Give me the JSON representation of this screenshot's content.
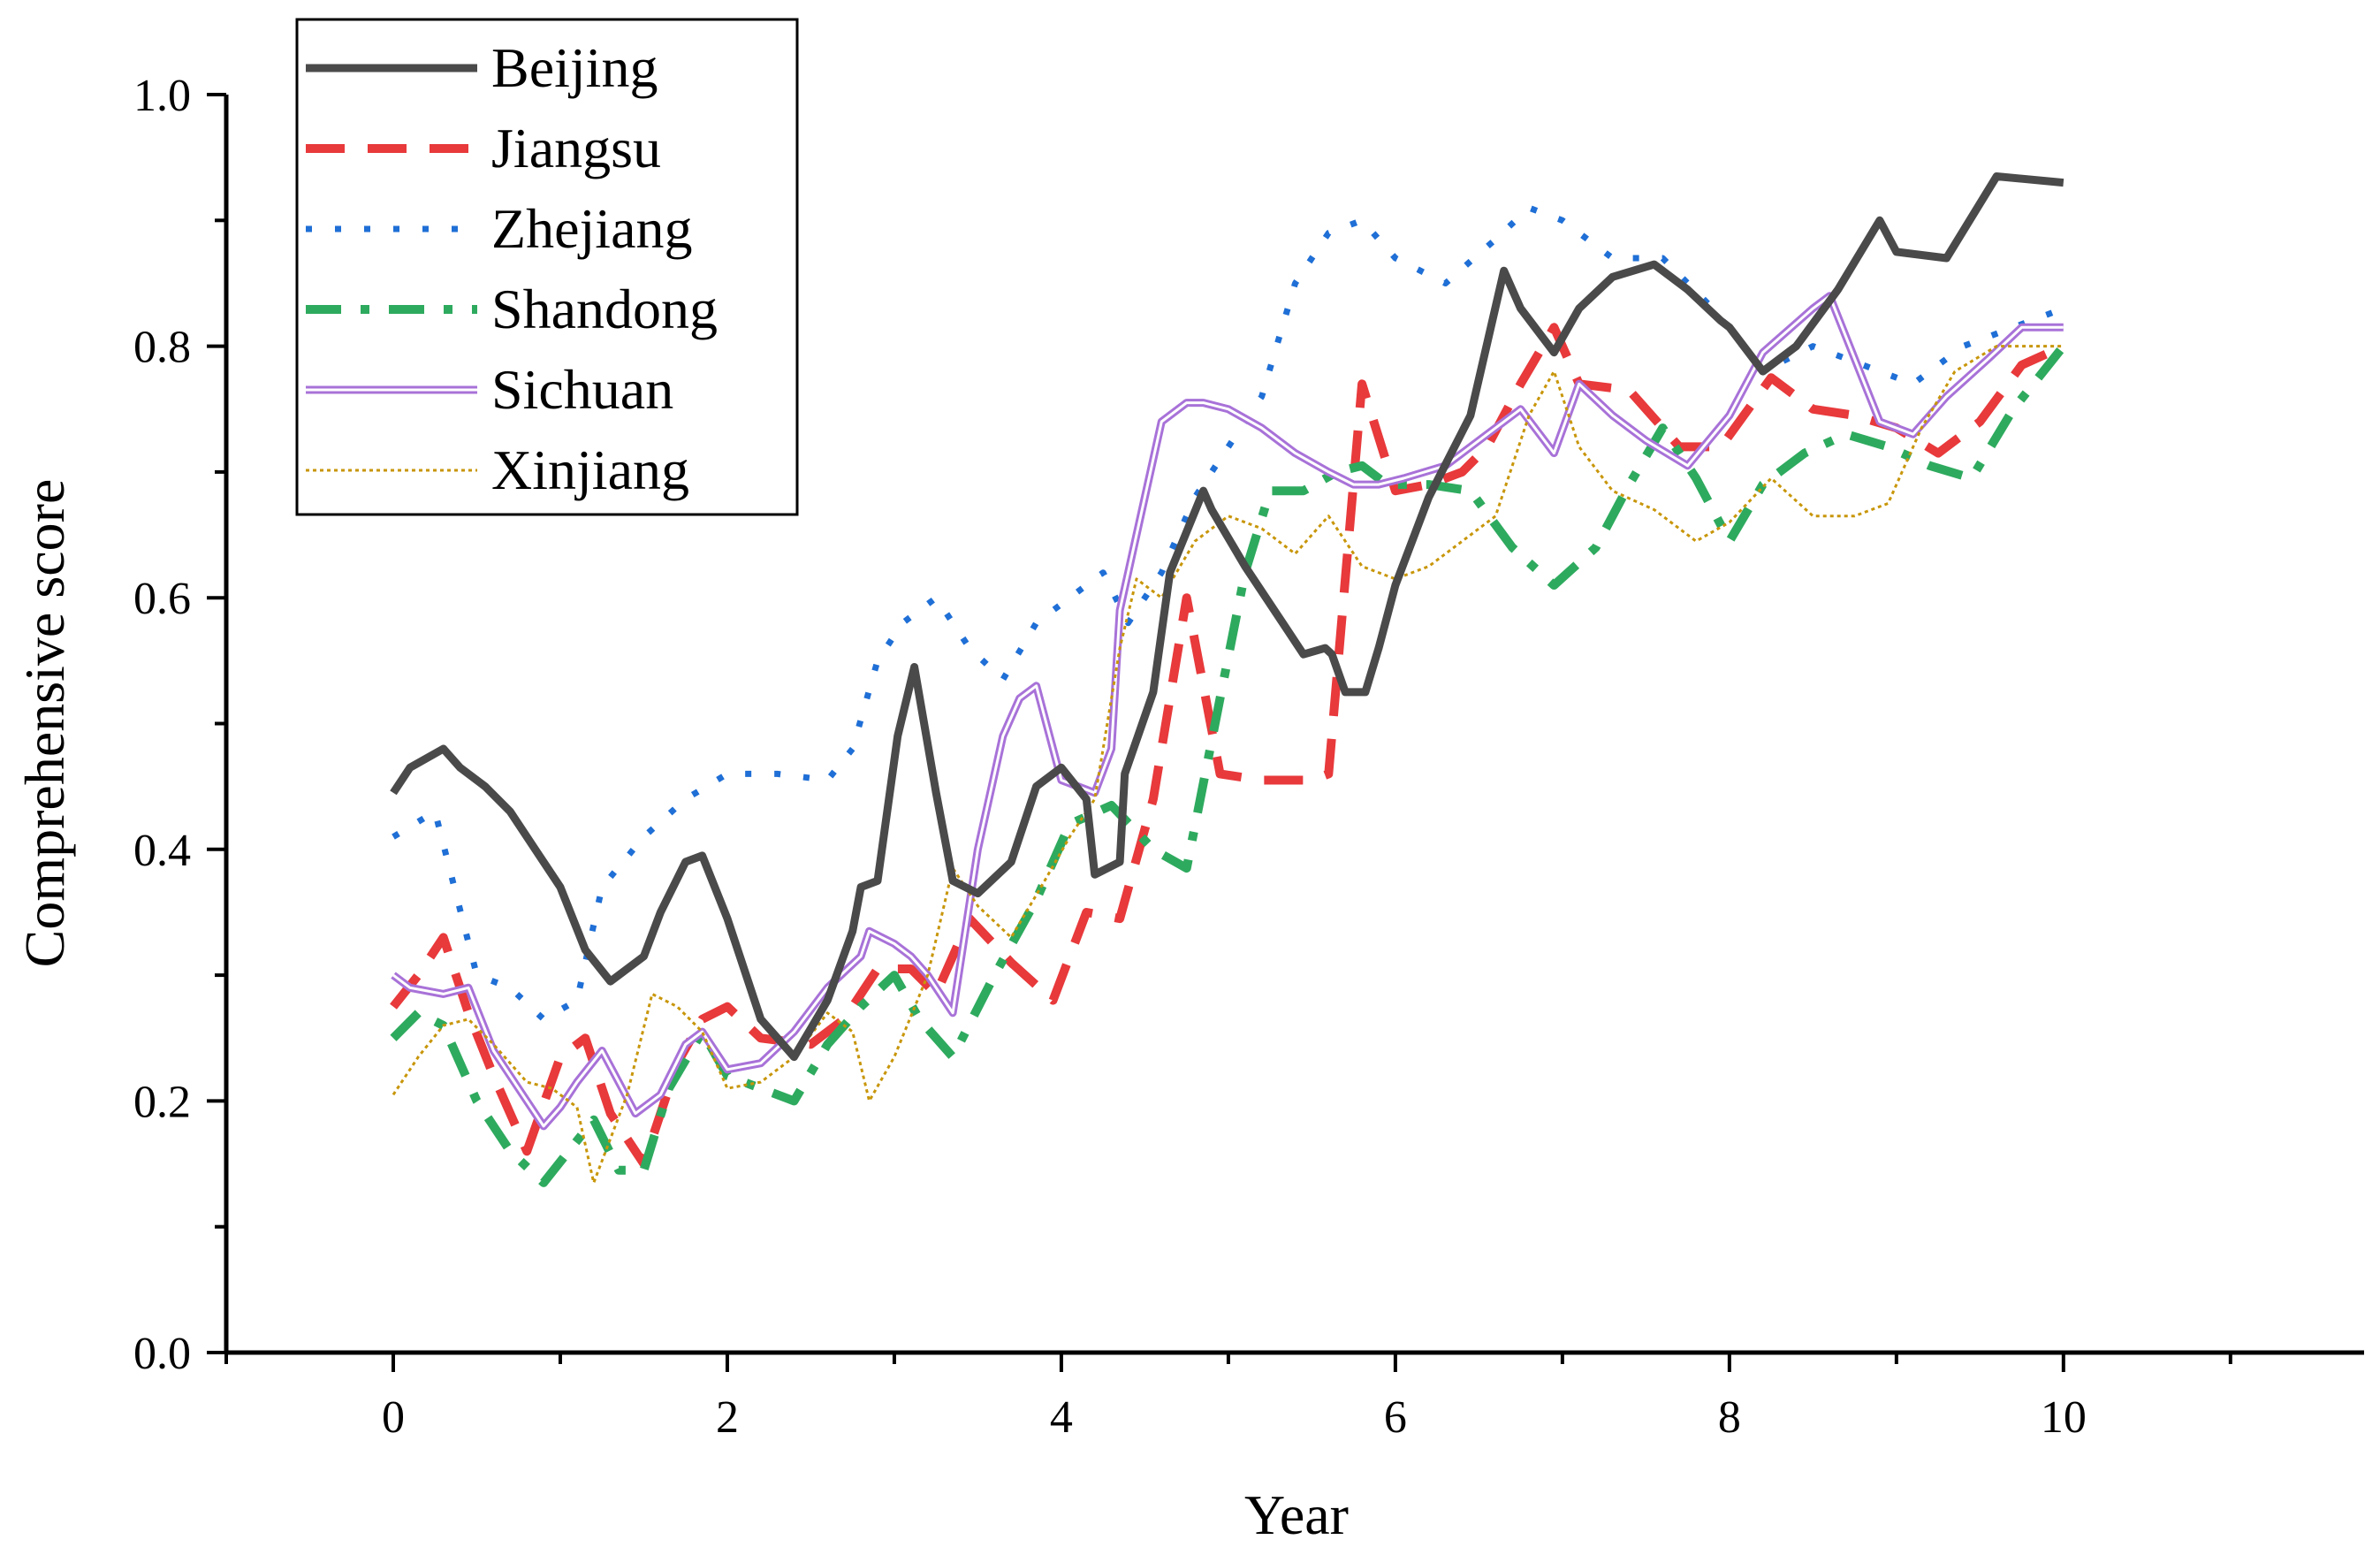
{
  "chart_data": {
    "type": "line",
    "title": "",
    "xlabel": "Year",
    "ylabel": "Comprehensive score",
    "xlim": [
      -1,
      11.8
    ],
    "ylim": [
      0,
      1.0
    ],
    "xticks": [
      0,
      2,
      4,
      6,
      8,
      10
    ],
    "xtick_labels": [
      "0",
      "2",
      "4",
      "6",
      "8",
      "10"
    ],
    "yticks": [
      0.0,
      0.2,
      0.4,
      0.6,
      0.8,
      1.0
    ],
    "ytick_labels": [
      "0.0",
      "0.2",
      "0.4",
      "0.6",
      "0.8",
      "1.0"
    ],
    "legend_position": "top-left",
    "grid": false,
    "series": [
      {
        "name": "Beijing",
        "color": "#4a4a4a",
        "style": "solid",
        "x": [
          0,
          0.1,
          0.3,
          0.4,
          0.55,
          0.7,
          0.85,
          1.0,
          1.15,
          1.3,
          1.5,
          1.6,
          1.75,
          1.85,
          2.0,
          2.1,
          2.2,
          2.4,
          2.6,
          2.75,
          2.8,
          2.9,
          3.02,
          3.12,
          3.25,
          3.35,
          3.5,
          3.7,
          3.85,
          4.0,
          4.15,
          4.2,
          4.35,
          4.38,
          4.55,
          4.65,
          4.85,
          4.9,
          5.1,
          5.35,
          5.45,
          5.58,
          5.62,
          5.7,
          5.82,
          5.9,
          6.0,
          6.2,
          6.45,
          6.65,
          6.75,
          6.95,
          7.1,
          7.3,
          7.55,
          7.75,
          7.95,
          8.0,
          8.2,
          8.4,
          8.65,
          8.9,
          9.0,
          9.3,
          9.6,
          10.0
        ],
        "values": [
          0.445,
          0.465,
          0.48,
          0.465,
          0.45,
          0.43,
          0.4,
          0.37,
          0.32,
          0.295,
          0.315,
          0.35,
          0.39,
          0.395,
          0.345,
          0.305,
          0.265,
          0.235,
          0.28,
          0.335,
          0.37,
          0.375,
          0.49,
          0.545,
          0.445,
          0.375,
          0.365,
          0.39,
          0.45,
          0.465,
          0.44,
          0.38,
          0.39,
          0.46,
          0.525,
          0.62,
          0.685,
          0.67,
          0.625,
          0.575,
          0.555,
          0.56,
          0.555,
          0.525,
          0.525,
          0.56,
          0.61,
          0.68,
          0.745,
          0.86,
          0.83,
          0.795,
          0.83,
          0.855,
          0.865,
          0.845,
          0.82,
          0.815,
          0.78,
          0.8,
          0.845,
          0.9,
          0.875,
          0.87,
          0.935,
          0.93
        ]
      },
      {
        "name": "Jiangsu",
        "color": "#e8393b",
        "style": "dashed",
        "x": [
          0,
          0.15,
          0.3,
          0.45,
          0.6,
          0.8,
          1.0,
          1.15,
          1.3,
          1.5,
          1.7,
          1.85,
          2.0,
          2.2,
          2.5,
          2.7,
          2.9,
          3.1,
          3.25,
          3.45,
          3.7,
          3.95,
          4.15,
          4.35,
          4.55,
          4.75,
          4.95,
          5.2,
          5.5,
          5.6,
          5.8,
          6.0,
          6.2,
          6.4,
          6.55,
          6.75,
          6.95,
          7.1,
          7.4,
          7.7,
          7.95,
          8.25,
          8.5,
          8.75,
          9.0,
          9.25,
          9.5,
          9.75,
          10.0
        ],
        "values": [
          0.275,
          0.3,
          0.33,
          0.27,
          0.22,
          0.16,
          0.235,
          0.25,
          0.19,
          0.15,
          0.23,
          0.265,
          0.275,
          0.25,
          0.245,
          0.265,
          0.305,
          0.305,
          0.285,
          0.345,
          0.31,
          0.28,
          0.35,
          0.345,
          0.44,
          0.6,
          0.46,
          0.455,
          0.455,
          0.46,
          0.77,
          0.685,
          0.69,
          0.7,
          0.72,
          0.77,
          0.815,
          0.77,
          0.765,
          0.72,
          0.72,
          0.775,
          0.75,
          0.745,
          0.735,
          0.715,
          0.74,
          0.785,
          0.8
        ]
      },
      {
        "name": "Zhejiang",
        "color": "#1f6fd6",
        "style": "dotted",
        "x": [
          0,
          0.25,
          0.5,
          0.7,
          0.9,
          1.1,
          1.25,
          1.5,
          1.75,
          2.0,
          2.3,
          2.6,
          2.75,
          2.9,
          3.05,
          3.25,
          3.45,
          3.65,
          3.85,
          4.05,
          4.25,
          4.4,
          4.6,
          4.8,
          5.0,
          5.2,
          5.4,
          5.6,
          5.8,
          6.0,
          6.3,
          6.6,
          6.8,
          7.0,
          7.3,
          7.6,
          7.9,
          8.2,
          8.5,
          8.8,
          9.1,
          9.4,
          9.7,
          10.0
        ],
        "values": [
          0.41,
          0.43,
          0.3,
          0.29,
          0.265,
          0.28,
          0.37,
          0.41,
          0.44,
          0.46,
          0.46,
          0.455,
          0.48,
          0.55,
          0.58,
          0.6,
          0.56,
          0.535,
          0.58,
          0.6,
          0.62,
          0.58,
          0.62,
          0.68,
          0.72,
          0.76,
          0.85,
          0.89,
          0.9,
          0.87,
          0.85,
          0.885,
          0.91,
          0.9,
          0.87,
          0.87,
          0.83,
          0.78,
          0.8,
          0.785,
          0.77,
          0.8,
          0.815,
          0.83
        ]
      },
      {
        "name": "Shandong",
        "color": "#2eaa5e",
        "style": "dashdot",
        "x": [
          0,
          0.15,
          0.3,
          0.5,
          0.7,
          0.9,
          1.05,
          1.2,
          1.35,
          1.5,
          1.65,
          1.85,
          2.0,
          2.2,
          2.4,
          2.6,
          2.8,
          3.0,
          3.15,
          3.35,
          3.6,
          3.85,
          4.05,
          4.3,
          4.55,
          4.75,
          4.95,
          5.1,
          5.25,
          5.45,
          5.65,
          5.8,
          5.95,
          6.2,
          6.45,
          6.7,
          6.95,
          7.2,
          7.4,
          7.6,
          7.8,
          8.0,
          8.2,
          8.45,
          8.7,
          8.95,
          9.2,
          9.45,
          9.7,
          10.0
        ],
        "values": [
          0.25,
          0.27,
          0.26,
          0.2,
          0.16,
          0.135,
          0.16,
          0.185,
          0.145,
          0.145,
          0.21,
          0.255,
          0.22,
          0.21,
          0.2,
          0.245,
          0.275,
          0.3,
          0.265,
          0.235,
          0.3,
          0.36,
          0.42,
          0.435,
          0.4,
          0.385,
          0.52,
          0.62,
          0.685,
          0.685,
          0.7,
          0.705,
          0.69,
          0.69,
          0.685,
          0.64,
          0.61,
          0.64,
          0.69,
          0.735,
          0.695,
          0.645,
          0.69,
          0.715,
          0.73,
          0.72,
          0.705,
          0.695,
          0.75,
          0.8
        ]
      },
      {
        "name": "Sichuan",
        "color": "#a872d8",
        "style": "double",
        "x": [
          0,
          0.1,
          0.3,
          0.45,
          0.6,
          0.75,
          0.9,
          1.0,
          1.1,
          1.25,
          1.45,
          1.6,
          1.75,
          1.85,
          2.0,
          2.2,
          2.4,
          2.6,
          2.8,
          2.85,
          3.0,
          3.1,
          3.2,
          3.35,
          3.5,
          3.65,
          3.75,
          3.85,
          4.0,
          4.1,
          4.2,
          4.3,
          4.35,
          4.5,
          4.6,
          4.75,
          4.85,
          5.0,
          5.2,
          5.4,
          5.6,
          5.75,
          5.9,
          6.05,
          6.3,
          6.55,
          6.75,
          6.95,
          7.1,
          7.3,
          7.5,
          7.75,
          8.0,
          8.2,
          8.5,
          8.6,
          8.9,
          9.1,
          9.3,
          9.55,
          9.75,
          10.0
        ],
        "values": [
          0.3,
          0.29,
          0.285,
          0.29,
          0.24,
          0.21,
          0.18,
          0.195,
          0.215,
          0.24,
          0.19,
          0.205,
          0.245,
          0.255,
          0.225,
          0.23,
          0.255,
          0.29,
          0.315,
          0.335,
          0.325,
          0.315,
          0.3,
          0.27,
          0.4,
          0.49,
          0.52,
          0.53,
          0.455,
          0.45,
          0.445,
          0.48,
          0.59,
          0.68,
          0.74,
          0.755,
          0.755,
          0.75,
          0.735,
          0.715,
          0.7,
          0.69,
          0.69,
          0.695,
          0.705,
          0.73,
          0.75,
          0.715,
          0.77,
          0.745,
          0.725,
          0.705,
          0.745,
          0.795,
          0.83,
          0.84,
          0.74,
          0.73,
          0.76,
          0.79,
          0.815,
          0.815
        ]
      },
      {
        "name": "Xinjiang",
        "color": "#c8960a",
        "style": "finedot",
        "x": [
          0,
          0.15,
          0.3,
          0.45,
          0.6,
          0.8,
          0.95,
          1.1,
          1.2,
          1.4,
          1.55,
          1.7,
          1.85,
          2.0,
          2.2,
          2.4,
          2.6,
          2.75,
          2.85,
          3.0,
          3.2,
          3.35,
          3.5,
          3.7,
          3.9,
          4.05,
          4.2,
          4.35,
          4.45,
          4.6,
          4.8,
          5.0,
          5.2,
          5.4,
          5.6,
          5.8,
          6.0,
          6.2,
          6.4,
          6.6,
          6.8,
          6.95,
          7.1,
          7.3,
          7.55,
          7.8,
          8.0,
          8.25,
          8.5,
          8.75,
          8.95,
          9.15,
          9.35,
          9.6,
          9.8,
          10.0
        ],
        "values": [
          0.205,
          0.235,
          0.26,
          0.265,
          0.245,
          0.215,
          0.21,
          0.195,
          0.135,
          0.205,
          0.285,
          0.275,
          0.255,
          0.21,
          0.215,
          0.235,
          0.27,
          0.255,
          0.2,
          0.235,
          0.3,
          0.385,
          0.355,
          0.33,
          0.375,
          0.41,
          0.44,
          0.56,
          0.615,
          0.6,
          0.645,
          0.665,
          0.655,
          0.635,
          0.665,
          0.625,
          0.615,
          0.625,
          0.645,
          0.665,
          0.745,
          0.78,
          0.72,
          0.685,
          0.67,
          0.645,
          0.66,
          0.695,
          0.665,
          0.665,
          0.675,
          0.735,
          0.78,
          0.8,
          0.8,
          0.8
        ]
      }
    ]
  }
}
